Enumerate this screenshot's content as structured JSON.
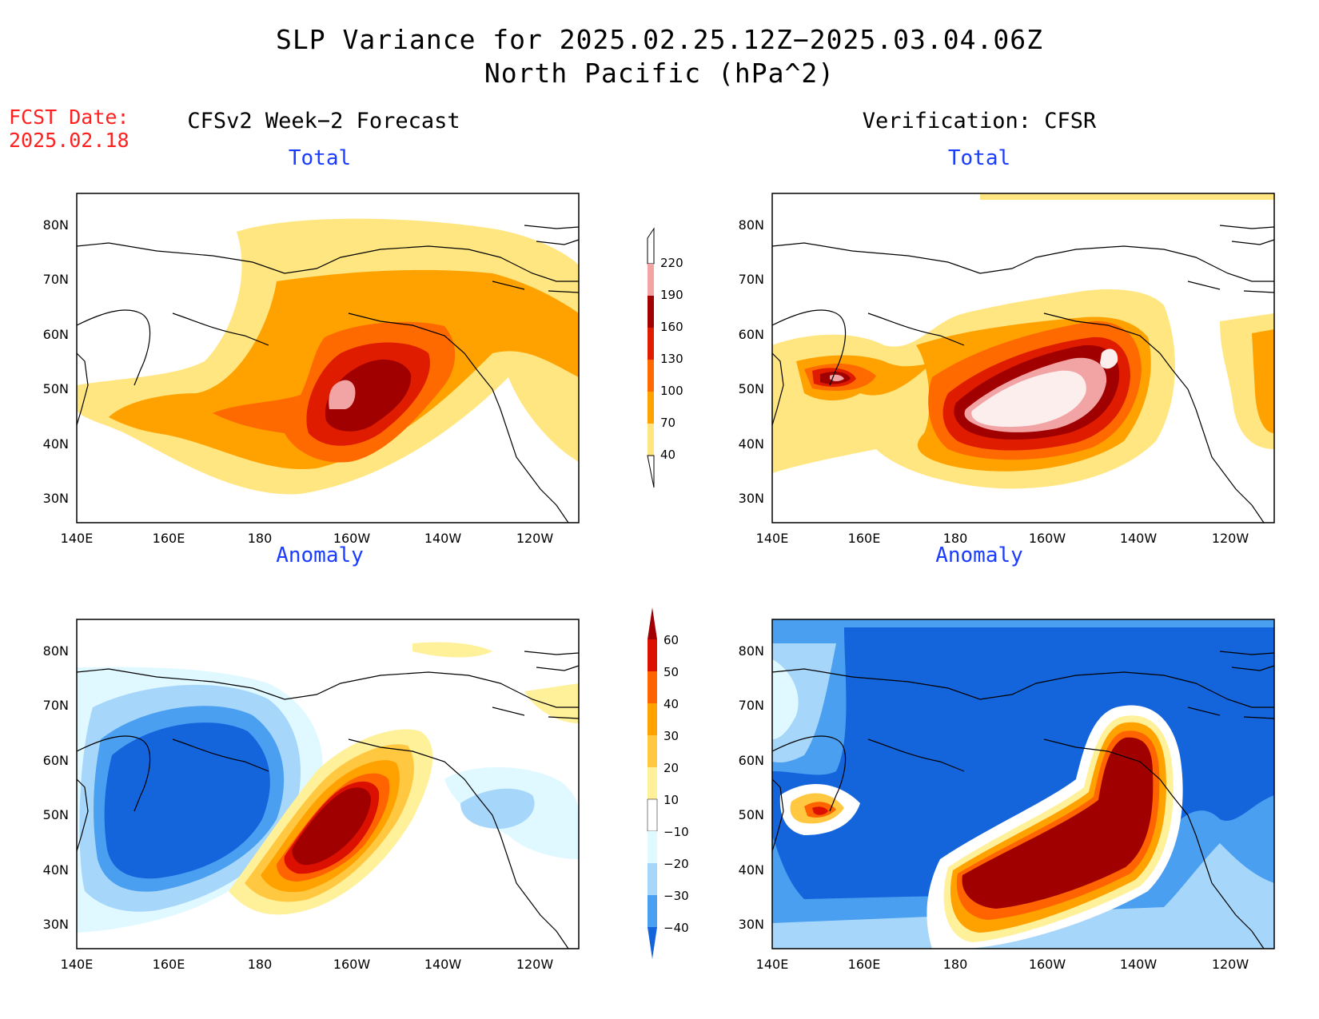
{
  "title": {
    "line1": "SLP Variance for 2025.02.25.12Z−2025.03.04.06Z",
    "line2": "North Pacific (hPa^2)"
  },
  "fcst": {
    "line1": "FCST Date:",
    "line2": "2025.02.18"
  },
  "columns": {
    "left": "CFSv2 Week−2 Forecast",
    "right": "Verification: CFSR"
  },
  "panel_titles": {
    "total": "Total",
    "anomaly": "Anomaly"
  },
  "lat_labels": [
    "80N",
    "70N",
    "60N",
    "50N",
    "40N",
    "30N"
  ],
  "lon_labels": [
    "140E",
    "160E",
    "180",
    "160W",
    "140W",
    "120W"
  ],
  "colorbars": {
    "total": {
      "labels": [
        "220",
        "190",
        "160",
        "130",
        "100",
        "70",
        "40"
      ],
      "colors": [
        "#fdeeee",
        "#f2a4a4",
        "#a00000",
        "#e01c00",
        "#ff6a00",
        "#ffa200",
        "#ffe680"
      ]
    },
    "anomaly": {
      "labels": [
        "60",
        "50",
        "40",
        "30",
        "20",
        "10",
        "−10",
        "−20",
        "−30",
        "−40"
      ],
      "colors": [
        "#a00000",
        "#dc1000",
        "#ff6400",
        "#ffa200",
        "#ffc840",
        "#fff09a",
        "#ffffff",
        "#e0f8ff",
        "#a6d6fa",
        "#4a9ff0",
        "#1464dc"
      ]
    }
  },
  "legend_colors": {
    "yellow": "#ffe680",
    "orange": "#ffa200",
    "dark_orange": "#ff6a00",
    "red": "#e01c00",
    "dark_red": "#a00000",
    "pink": "#f2a4a4",
    "light_pink": "#fdeeee",
    "blue_dark": "#1464dc",
    "blue_mid": "#4a9ff0",
    "blue_light": "#a6d6fa",
    "blue_pale": "#e0f8ff"
  }
}
